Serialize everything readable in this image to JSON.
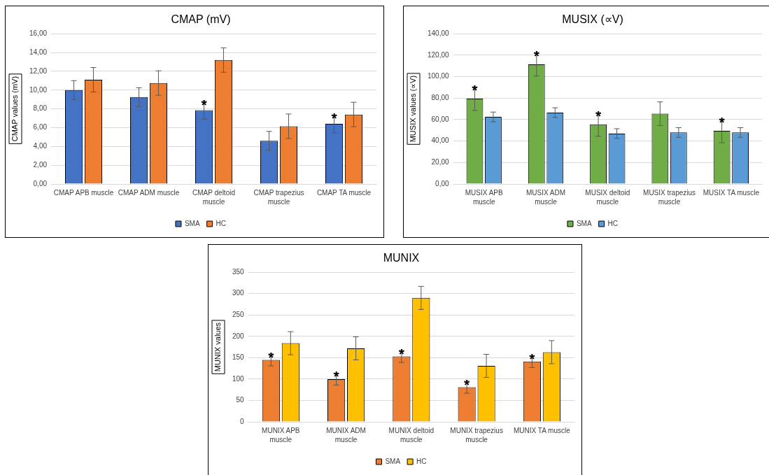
{
  "chart_data": [
    {
      "type": "bar",
      "title": "CMAP (mV)",
      "ylabel": "CMAP values (mV)",
      "categories": [
        "CMAP APB muscle",
        "CMAP ADM muscle",
        "CMAP deltoid muscle",
        "CMAP trapezius muscle",
        "CMAP TA muscle"
      ],
      "series": [
        {
          "name": "SMA",
          "color": "#4472c4",
          "values": [
            10.0,
            9.25,
            7.85,
            4.6,
            6.4
          ],
          "errors": [
            1.0,
            1.0,
            0.95,
            1.0,
            0.95
          ]
        },
        {
          "name": "HC",
          "color": "#ed7d31",
          "values": [
            11.1,
            10.75,
            13.2,
            6.15,
            7.4
          ],
          "errors": [
            1.3,
            1.3,
            1.3,
            1.3,
            1.3
          ]
        }
      ],
      "ylim": [
        0,
        16
      ],
      "yticks": [
        {
          "value": 0,
          "label": "0,00"
        },
        {
          "value": 2,
          "label": "2,00"
        },
        {
          "value": 4,
          "label": "4,00"
        },
        {
          "value": 6,
          "label": "6,00"
        },
        {
          "value": 8,
          "label": "8,00"
        },
        {
          "value": 10,
          "label": "10,00"
        },
        {
          "value": 12,
          "label": "12,00"
        },
        {
          "value": 14,
          "label": "14,00"
        },
        {
          "value": 16,
          "label": "16,00"
        }
      ],
      "grid": "y",
      "legend": "bottom",
      "annotations": [
        {
          "text": "*",
          "x": "CMAP deltoid muscle",
          "y": 7.85
        },
        {
          "text": "*",
          "x": "CMAP TA muscle",
          "y": 6.4
        }
      ]
    },
    {
      "type": "bar",
      "title": "MUSIX (∝V)",
      "ylabel": "MUSIX values (∝V)",
      "categories": [
        "MUSIX APB muscle",
        "MUSIX ADM muscle",
        "MUSIX deltoid muscle",
        "MUSIX trapezius muscle",
        "MUSIX TA muscle"
      ],
      "series": [
        {
          "name": "SMA",
          "color": "#70ad47",
          "values": [
            79.5,
            111.5,
            55.5,
            65.5,
            49.5
          ],
          "errors": [
            11,
            11,
            11,
            11,
            11
          ]
        },
        {
          "name": "HC",
          "color": "#5b9bd5",
          "values": [
            62.5,
            66.5,
            47,
            48,
            48
          ],
          "errors": [
            4.5,
            4.5,
            4.5,
            4.5,
            4.5
          ]
        }
      ],
      "ylim": [
        0,
        140
      ],
      "yticks": [
        {
          "value": 0,
          "label": "0,00"
        },
        {
          "value": 20,
          "label": "20,00"
        },
        {
          "value": 40,
          "label": "40,00"
        },
        {
          "value": 60,
          "label": "60,00"
        },
        {
          "value": 80,
          "label": "80,00"
        },
        {
          "value": 100,
          "label": "100,00"
        },
        {
          "value": 120,
          "label": "120,00"
        },
        {
          "value": 140,
          "label": "140,00"
        }
      ],
      "grid": "y",
      "legend": "bottom",
      "annotations": [
        {
          "text": "*",
          "x": "MUSIX APB muscle",
          "y": 79.5
        },
        {
          "text": "*",
          "x": "MUSIX ADM muscle",
          "y": 111.5
        },
        {
          "text": "*",
          "x": "MUSIX deltoid muscle",
          "y": 55.5
        },
        {
          "text": "*",
          "x": "MUSIX TA muscle",
          "y": 49.5
        }
      ]
    },
    {
      "type": "bar",
      "title": "MUNIX",
      "ylabel": "MUNIX values",
      "categories": [
        "MUNIX APB muscle",
        "MUNIX ADM muscle",
        "MUNIX deltoid muscle",
        "MUNIX trapezius muscle",
        "MUNIX TA muscle"
      ],
      "series": [
        {
          "name": "SMA",
          "color": "#ed7d31",
          "values": [
            145,
            100,
            153,
            81,
            141
          ],
          "errors": [
            14,
            14,
            14,
            14,
            14
          ]
        },
        {
          "name": "HC",
          "color": "#ffc000",
          "values": [
            184,
            172,
            290,
            131,
            163
          ],
          "errors": [
            27,
            27,
            27,
            27,
            27
          ]
        }
      ],
      "ylim": [
        0,
        350
      ],
      "yticks": [
        0,
        50,
        100,
        150,
        200,
        250,
        300,
        350
      ],
      "grid": "y",
      "legend": "bottom",
      "annotations": [
        {
          "text": "*",
          "x": "MUNIX APB muscle",
          "y": 145
        },
        {
          "text": "*",
          "x": "MUNIX ADM muscle",
          "y": 100
        },
        {
          "text": "*",
          "x": "MUNIX deltoid muscle",
          "y": 153
        },
        {
          "text": "*",
          "x": "MUNIX trapezius muscle",
          "y": 81
        },
        {
          "text": "*",
          "x": "MUNIX TA muscle",
          "y": 141
        }
      ]
    }
  ]
}
